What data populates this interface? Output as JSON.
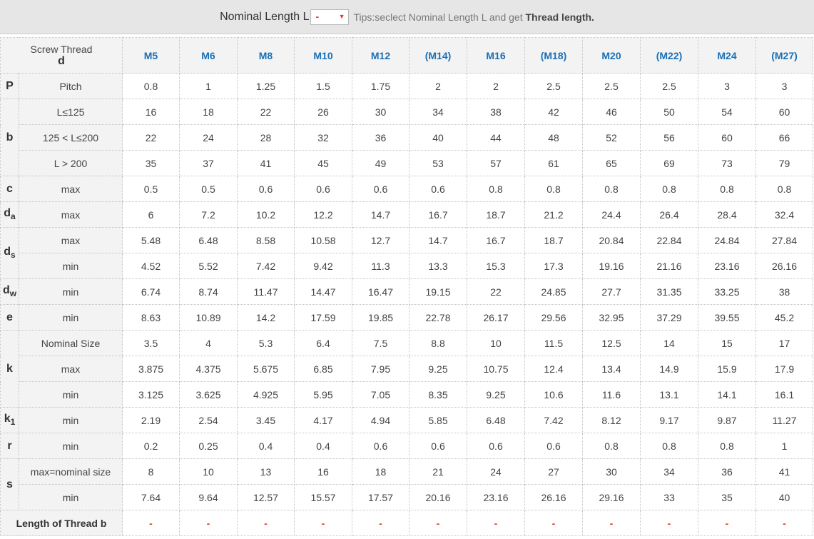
{
  "topbar": {
    "label": "Nominal Length L",
    "select_value": "-",
    "tips_prefix": "Tips:seclect Nominal Length L and get ",
    "tips_bold": "Thread length."
  },
  "header": {
    "screw_thread": "Screw Thread",
    "d": "d",
    "sizes": [
      "M5",
      "M6",
      "M8",
      "M10",
      "M12",
      "(M14)",
      "M16",
      "(M18)",
      "M20",
      "(M22)",
      "M24",
      "(M27)"
    ]
  },
  "rows": [
    {
      "sym": "P",
      "sub": "",
      "desc": "Pitch",
      "values": [
        "0.8",
        "1",
        "1.25",
        "1.5",
        "1.75",
        "2",
        "2",
        "2.5",
        "2.5",
        "2.5",
        "3",
        "3"
      ]
    },
    {
      "sym": "b",
      "sub": "",
      "desc": "L≤125",
      "values": [
        "16",
        "18",
        "22",
        "26",
        "30",
        "34",
        "38",
        "42",
        "46",
        "50",
        "54",
        "60"
      ]
    },
    {
      "sym": "",
      "sub": "",
      "desc": "125 < L≤200",
      "values": [
        "22",
        "24",
        "28",
        "32",
        "36",
        "40",
        "44",
        "48",
        "52",
        "56",
        "60",
        "66"
      ]
    },
    {
      "sym": "",
      "sub": "",
      "desc": "L > 200",
      "values": [
        "35",
        "37",
        "41",
        "45",
        "49",
        "53",
        "57",
        "61",
        "65",
        "69",
        "73",
        "79"
      ]
    },
    {
      "sym": "c",
      "sub": "",
      "desc": "max",
      "values": [
        "0.5",
        "0.5",
        "0.6",
        "0.6",
        "0.6",
        "0.6",
        "0.8",
        "0.8",
        "0.8",
        "0.8",
        "0.8",
        "0.8"
      ]
    },
    {
      "sym": "d",
      "sub": "a",
      "desc": "max",
      "values": [
        "6",
        "7.2",
        "10.2",
        "12.2",
        "14.7",
        "16.7",
        "18.7",
        "21.2",
        "24.4",
        "26.4",
        "28.4",
        "32.4"
      ]
    },
    {
      "sym": "d",
      "sub": "s",
      "desc": "max",
      "values": [
        "5.48",
        "6.48",
        "8.58",
        "10.58",
        "12.7",
        "14.7",
        "16.7",
        "18.7",
        "20.84",
        "22.84",
        "24.84",
        "27.84"
      ]
    },
    {
      "sym": "",
      "sub": "",
      "desc": "min",
      "values": [
        "4.52",
        "5.52",
        "7.42",
        "9.42",
        "11.3",
        "13.3",
        "15.3",
        "17.3",
        "19.16",
        "21.16",
        "23.16",
        "26.16"
      ]
    },
    {
      "sym": "d",
      "sub": "w",
      "desc": "min",
      "values": [
        "6.74",
        "8.74",
        "11.47",
        "14.47",
        "16.47",
        "19.15",
        "22",
        "24.85",
        "27.7",
        "31.35",
        "33.25",
        "38"
      ]
    },
    {
      "sym": "e",
      "sub": "",
      "desc": "min",
      "values": [
        "8.63",
        "10.89",
        "14.2",
        "17.59",
        "19.85",
        "22.78",
        "26.17",
        "29.56",
        "32.95",
        "37.29",
        "39.55",
        "45.2"
      ]
    },
    {
      "sym": "k",
      "sub": "",
      "desc": "Nominal Size",
      "values": [
        "3.5",
        "4",
        "5.3",
        "6.4",
        "7.5",
        "8.8",
        "10",
        "11.5",
        "12.5",
        "14",
        "15",
        "17"
      ]
    },
    {
      "sym": "",
      "sub": "",
      "desc": "max",
      "values": [
        "3.875",
        "4.375",
        "5.675",
        "6.85",
        "7.95",
        "9.25",
        "10.75",
        "12.4",
        "13.4",
        "14.9",
        "15.9",
        "17.9"
      ]
    },
    {
      "sym": "",
      "sub": "",
      "desc": "min",
      "values": [
        "3.125",
        "3.625",
        "4.925",
        "5.95",
        "7.05",
        "8.35",
        "9.25",
        "10.6",
        "11.6",
        "13.1",
        "14.1",
        "16.1"
      ]
    },
    {
      "sym": "k",
      "sub": "1",
      "desc": "min",
      "values": [
        "2.19",
        "2.54",
        "3.45",
        "4.17",
        "4.94",
        "5.85",
        "6.48",
        "7.42",
        "8.12",
        "9.17",
        "9.87",
        "11.27"
      ]
    },
    {
      "sym": "r",
      "sub": "",
      "desc": "min",
      "values": [
        "0.2",
        "0.25",
        "0.4",
        "0.4",
        "0.6",
        "0.6",
        "0.6",
        "0.6",
        "0.8",
        "0.8",
        "0.8",
        "1"
      ]
    },
    {
      "sym": "s",
      "sub": "",
      "desc": "max=nominal size",
      "values": [
        "8",
        "10",
        "13",
        "16",
        "18",
        "21",
        "24",
        "27",
        "30",
        "34",
        "36",
        "41"
      ]
    },
    {
      "sym": "",
      "sub": "",
      "desc": "min",
      "values": [
        "7.64",
        "9.64",
        "12.57",
        "15.57",
        "17.57",
        "20.16",
        "23.16",
        "26.16",
        "29.16",
        "33",
        "35",
        "40"
      ]
    }
  ],
  "footer": {
    "label": "Length of Thread b",
    "values": [
      "-",
      "-",
      "-",
      "-",
      "-",
      "-",
      "-",
      "-",
      "-",
      "-",
      "-",
      "-"
    ]
  }
}
